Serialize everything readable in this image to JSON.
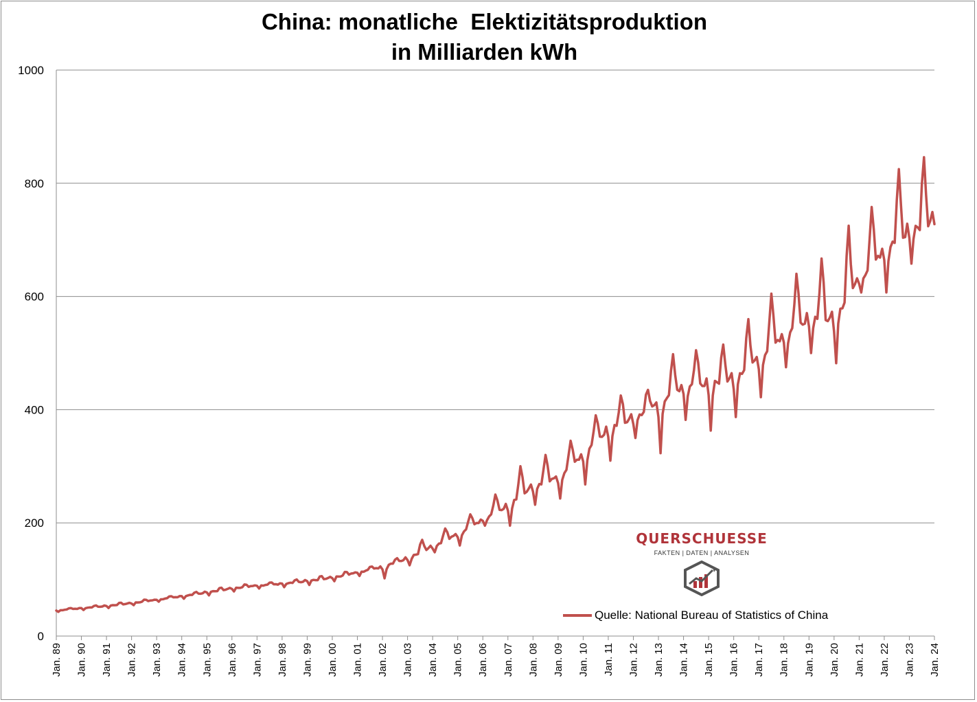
{
  "chart_data": {
    "type": "line",
    "title_lines": [
      "China: monatliche  Elektizitätsproduktion",
      "in Milliarden kWh"
    ],
    "xlabel": "",
    "ylabel": "",
    "ylim": [
      0,
      1000
    ],
    "yticks": [
      0,
      200,
      400,
      600,
      800,
      1000
    ],
    "xticks": [
      "Jan. 89",
      "Jan. 90",
      "Jan. 91",
      "Jan. 92",
      "Jan. 93",
      "Jan. 94",
      "Jan. 95",
      "Jan. 96",
      "Jan. 97",
      "Jan. 98",
      "Jan. 99",
      "Jan. 00",
      "Jan. 01",
      "Jan. 02",
      "Jan. 03",
      "Jan. 04",
      "Jan. 05",
      "Jan. 06",
      "Jan. 07",
      "Jan. 08",
      "Jan. 09",
      "Jan. 10",
      "Jan. 11",
      "Jan. 12",
      "Jan. 13",
      "Jan. 14",
      "Jan. 15",
      "Jan. 16",
      "Jan. 17",
      "Jan. 18",
      "Jan. 19",
      "Jan. 20",
      "Jan. 21",
      "Jan. 22",
      "Jan. 23",
      "Jan. 24"
    ],
    "x_start": "1989-01",
    "x_end": "2024-01",
    "grid": "horizontal",
    "legend_position": "bottom-right",
    "series": [
      {
        "name": "Quelle: National Bureau of Statistics of China",
        "color": "#c0504d",
        "annual_level_points": [
          [
            "1989-01",
            45
          ],
          [
            "1990-01",
            49
          ],
          [
            "1991-01",
            53
          ],
          [
            "1992-01",
            58
          ],
          [
            "1993-01",
            64
          ],
          [
            "1994-01",
            70
          ],
          [
            "1995-01",
            77
          ],
          [
            "1996-01",
            84
          ],
          [
            "1997-01",
            89
          ],
          [
            "1998-01",
            92
          ],
          [
            "1999-01",
            97
          ],
          [
            "2000-01",
            103
          ],
          [
            "2001-01",
            112
          ],
          [
            "2002-01",
            122
          ],
          [
            "2003-01",
            137
          ],
          [
            "2004-01",
            158
          ],
          [
            "2005-01",
            180
          ],
          [
            "2006-01",
            205
          ],
          [
            "2007-01",
            230
          ],
          [
            "2008-01",
            265
          ],
          [
            "2009-01",
            280
          ],
          [
            "2010-01",
            320
          ],
          [
            "2011-01",
            365
          ],
          [
            "2012-01",
            385
          ],
          [
            "2013-01",
            410
          ],
          [
            "2014-01",
            440
          ],
          [
            "2015-01",
            445
          ],
          [
            "2016-01",
            455
          ],
          [
            "2017-01",
            490
          ],
          [
            "2018-01",
            530
          ],
          [
            "2019-01",
            560
          ],
          [
            "2020-01",
            560
          ],
          [
            "2021-01",
            630
          ],
          [
            "2022-01",
            680
          ],
          [
            "2023-01",
            715
          ],
          [
            "2023-12",
            732
          ]
        ],
        "peaks": [
          [
            "2003-08",
            170
          ],
          [
            "2004-07",
            190
          ],
          [
            "2005-07",
            215
          ],
          [
            "2006-07",
            250
          ],
          [
            "2007-07",
            300
          ],
          [
            "2008-07",
            320
          ],
          [
            "2009-07",
            345
          ],
          [
            "2010-07",
            390
          ],
          [
            "2011-07",
            425
          ],
          [
            "2012-08",
            435
          ],
          [
            "2013-08",
            498
          ],
          [
            "2014-07",
            505
          ],
          [
            "2015-08",
            515
          ],
          [
            "2016-08",
            560
          ],
          [
            "2017-07",
            605
          ],
          [
            "2018-07",
            640
          ],
          [
            "2019-07",
            667
          ],
          [
            "2020-08",
            725
          ],
          [
            "2021-07",
            758
          ],
          [
            "2022-08",
            825
          ],
          [
            "2023-08",
            846
          ]
        ],
        "troughs": [
          [
            "2002-02",
            102
          ],
          [
            "2003-02",
            125
          ],
          [
            "2004-02",
            148
          ],
          [
            "2005-02",
            160
          ],
          [
            "2006-02",
            195
          ],
          [
            "2007-02",
            195
          ],
          [
            "2008-02",
            232
          ],
          [
            "2009-02",
            243
          ],
          [
            "2010-02",
            268
          ],
          [
            "2011-02",
            310
          ],
          [
            "2012-02",
            350
          ],
          [
            "2013-02",
            323
          ],
          [
            "2014-02",
            382
          ],
          [
            "2015-02",
            363
          ],
          [
            "2016-02",
            387
          ],
          [
            "2017-02",
            422
          ],
          [
            "2018-02",
            475
          ],
          [
            "2019-02",
            500
          ],
          [
            "2020-02",
            482
          ],
          [
            "2021-02",
            607
          ],
          [
            "2022-02",
            607
          ],
          [
            "2023-02",
            658
          ]
        ]
      }
    ]
  },
  "logo": {
    "name": "QUERSCHUESSE",
    "tagline": "FAKTEN | DATEN | ANALYSEN",
    "icon": "hexagon-chart-icon"
  }
}
